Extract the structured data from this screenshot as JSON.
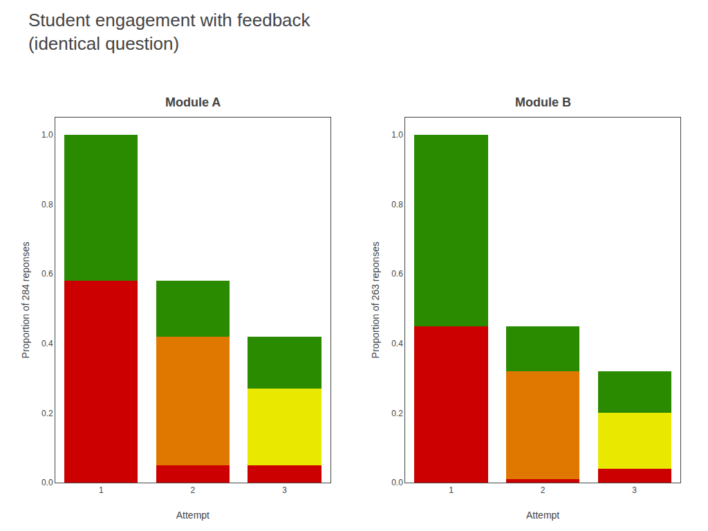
{
  "title": "Student engagement with feedback",
  "subtitle": "(identical question)",
  "chart_data": [
    {
      "type": "bar",
      "title": "Module A",
      "stacked": true,
      "grid": false,
      "x": [
        1,
        2,
        3
      ],
      "xlim": [
        0.5,
        3.5
      ],
      "xticks": [
        1,
        2,
        3
      ],
      "xlabel": "Attempt",
      "ylabel": "Proportion of 284 reponses",
      "ylim": [
        0.0,
        1.05
      ],
      "yticks": [
        {
          "value": 0.0,
          "label": "0.0"
        },
        0.2,
        0.4,
        0.6,
        0.8,
        {
          "value": 1.0,
          "label": "1.0"
        }
      ],
      "series": [
        {
          "color": "#cc0000",
          "values": [
            0.58,
            0.05,
            0.05
          ]
        },
        {
          "color": "#e07800",
          "values": [
            0.0,
            0.37,
            0.0
          ]
        },
        {
          "color": "#e8e800",
          "values": [
            0.0,
            0.0,
            0.22
          ]
        },
        {
          "color": "#2a8a00",
          "values": [
            0.42,
            0.16,
            0.15
          ]
        }
      ]
    },
    {
      "type": "bar",
      "title": "Module B",
      "stacked": true,
      "grid": false,
      "x": [
        1,
        2,
        3
      ],
      "xlim": [
        0.5,
        3.5
      ],
      "xticks": [
        1,
        2,
        3
      ],
      "xlabel": "Attempt",
      "ylabel": "Proportion of 263 reponses",
      "ylim": [
        0.0,
        1.05
      ],
      "yticks": [
        {
          "value": 0.0,
          "label": "0.0"
        },
        0.2,
        0.4,
        0.6,
        0.8,
        {
          "value": 1.0,
          "label": "1.0"
        }
      ],
      "series": [
        {
          "color": "#cc0000",
          "values": [
            0.45,
            0.01,
            0.04
          ]
        },
        {
          "color": "#e07800",
          "values": [
            0.0,
            0.31,
            0.0
          ]
        },
        {
          "color": "#e8e800",
          "values": [
            0.0,
            0.0,
            0.16
          ]
        },
        {
          "color": "#2a8a00",
          "values": [
            0.55,
            0.13,
            0.12
          ]
        }
      ]
    }
  ]
}
